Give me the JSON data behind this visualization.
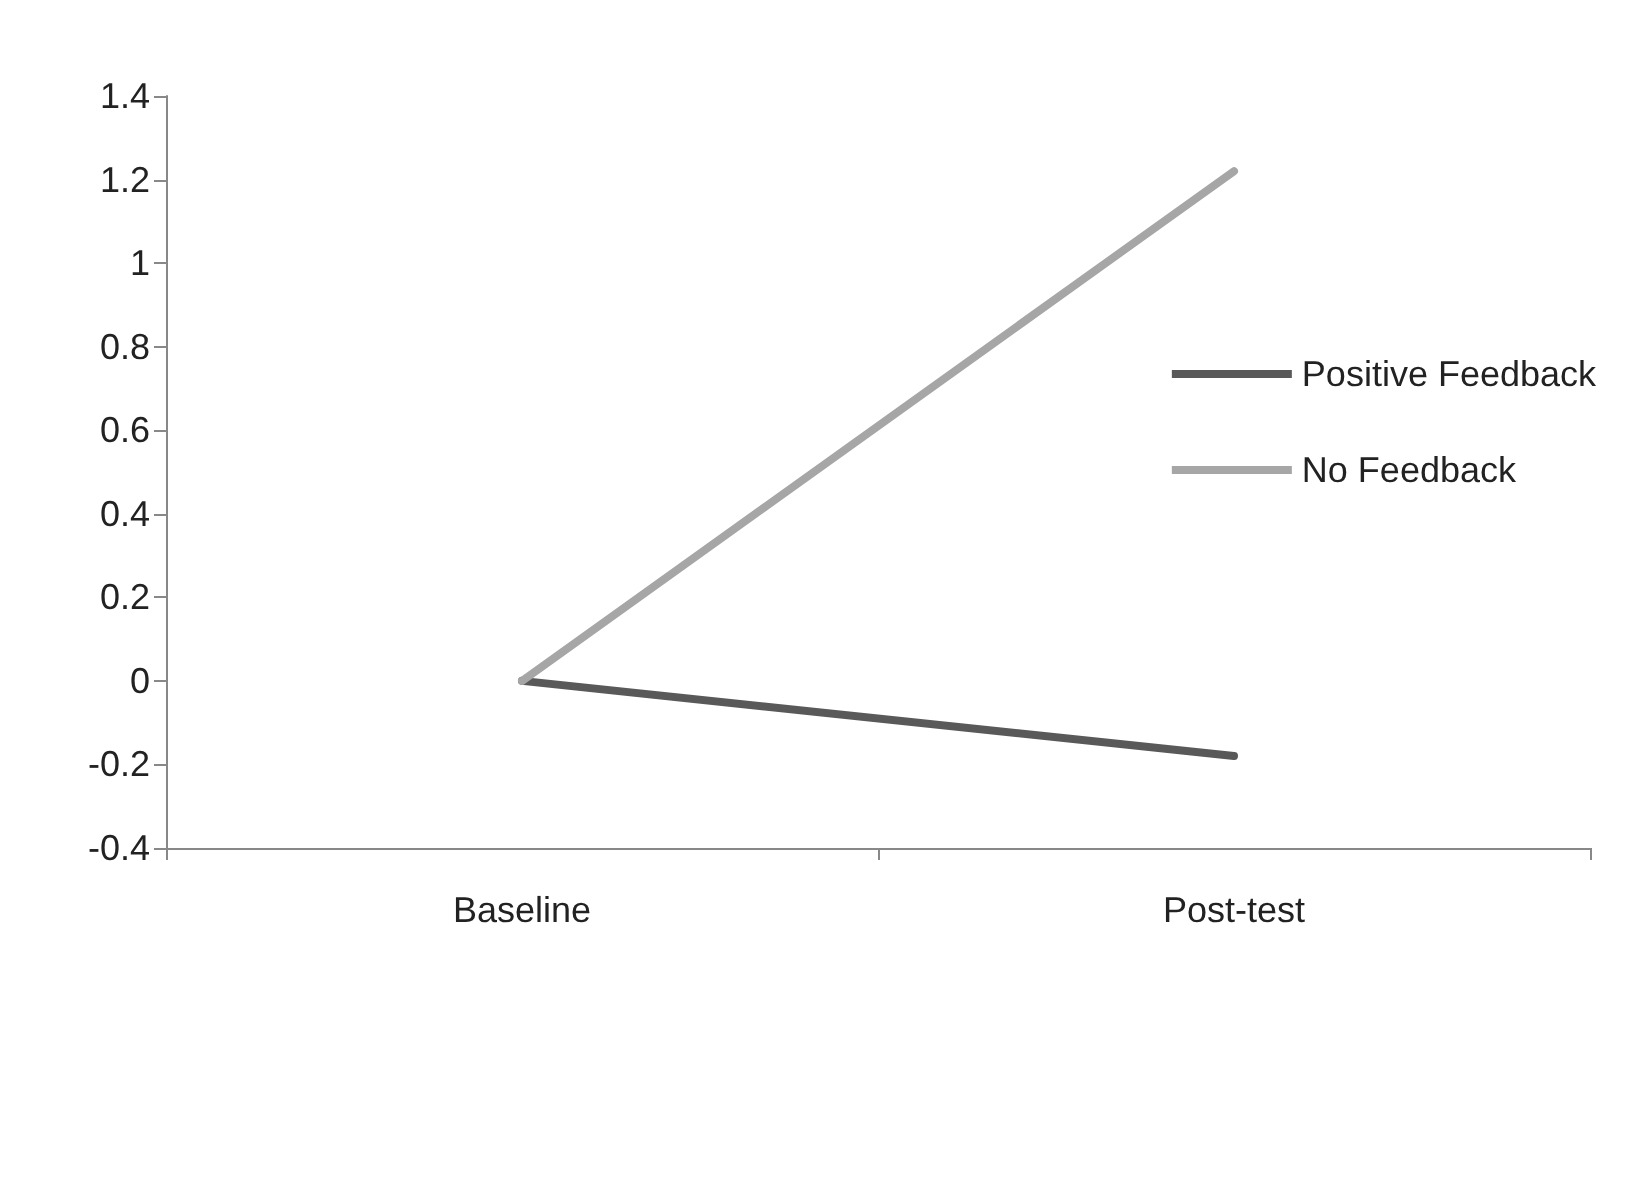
{
  "chart_data": {
    "type": "line",
    "categories": [
      "Baseline",
      "Post-test"
    ],
    "series": [
      {
        "name": "Positive Feedback",
        "color": "#595959",
        "values": [
          0,
          -0.18
        ]
      },
      {
        "name": "No Feedback",
        "color": "#a6a6a6",
        "values": [
          0,
          1.22
        ]
      }
    ],
    "ylim": [
      -0.4,
      1.4
    ],
    "yticks": [
      -0.4,
      -0.2,
      0,
      0.2,
      0.4,
      0.6,
      0.8,
      1,
      1.2,
      1.4
    ],
    "grid": false,
    "legend": "right",
    "marker": "none",
    "line_style": "solid"
  }
}
